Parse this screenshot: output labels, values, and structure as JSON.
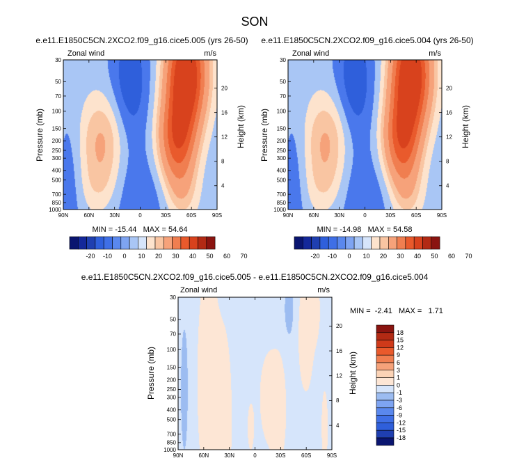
{
  "main_title": "SON",
  "colors": {
    "full_levels": [
      {
        "upto": -20,
        "color": "#0a1570"
      },
      {
        "upto": -15,
        "color": "#1f3fb0"
      },
      {
        "upto": -10,
        "color": "#2f5fdb"
      },
      {
        "upto": -5,
        "color": "#4a78ec"
      },
      {
        "upto": 0,
        "color": "#a9c6f5"
      },
      {
        "upto": 5,
        "color": "#fde3cd"
      },
      {
        "upto": 10,
        "color": "#f9c5a2"
      },
      {
        "upto": 20,
        "color": "#f6a27a"
      },
      {
        "upto": 30,
        "color": "#f07e50"
      },
      {
        "upto": 40,
        "color": "#e95a2c"
      },
      {
        "upto": 999,
        "color": "#d8421d"
      }
    ],
    "diff_levels": [
      {
        "upto": -1,
        "color": "#9cbcf1"
      },
      {
        "upto": 0,
        "color": "#d6e5fb"
      },
      {
        "upto": 1,
        "color": "#fde6d5"
      },
      {
        "upto": 3,
        "color": "#fbd3b6"
      },
      {
        "upto": 99,
        "color": "#f4ae89"
      }
    ]
  },
  "chart_data": [
    {
      "id": "panel1",
      "type": "contour",
      "title": "e.e11.E1850C5CN.2XCO2.f09_g16.cice5.005 (yrs 26-50)",
      "left_label": "Zonal wind",
      "right_label": "m/s",
      "ylabel": "Pressure (mb)",
      "ylabel_right": "Height (km)",
      "x_ticks": [
        "90N",
        "60N",
        "30N",
        "0",
        "30S",
        "60S",
        "90S"
      ],
      "xlim": [
        90,
        -90
      ],
      "y_ticks": [
        30,
        50,
        70,
        100,
        150,
        200,
        250,
        300,
        400,
        500,
        700,
        850,
        1000
      ],
      "ylim": [
        1000,
        30
      ],
      "height_ticks": [
        4,
        8,
        12,
        16,
        20
      ],
      "stats": "MIN = -15.44   MAX = 54.64",
      "min": -15.44,
      "max": 54.64,
      "colorbar_ticks": [
        "-20",
        "-10",
        "0",
        "10",
        "20",
        "30",
        "40",
        "50",
        "60",
        "70"
      ],
      "background_value": -3,
      "blobs": [
        {
          "lat": -55,
          "p": 40,
          "slat": 16,
          "sdec": 0.38,
          "v": 50
        },
        {
          "lat": -40,
          "p": 200,
          "slat": 14,
          "sdec": 0.3,
          "v": 26
        },
        {
          "lat": -50,
          "p": 130,
          "slat": 13,
          "sdec": 0.5,
          "v": 18
        },
        {
          "lat": 45,
          "p": 200,
          "slat": 18,
          "sdec": 0.32,
          "v": 14
        },
        {
          "lat": 48,
          "p": 600,
          "slat": 16,
          "sdec": 0.22,
          "v": 6
        },
        {
          "lat": -48,
          "p": 700,
          "slat": 13,
          "sdec": 0.2,
          "v": 6
        },
        {
          "lat": 12,
          "p": 50,
          "slat": 16,
          "sdec": 0.45,
          "v": -11
        },
        {
          "lat": 0,
          "p": 800,
          "slat": 28,
          "sdec": 0.35,
          "v": -6
        },
        {
          "lat": 82,
          "p": 600,
          "slat": 10,
          "sdec": 0.6,
          "v": -5
        }
      ]
    },
    {
      "id": "panel2",
      "type": "contour",
      "title": "e.e11.E1850C5CN.2XCO2.f09_g16.cice5.004 (yrs 26-50)",
      "left_label": "Zonal wind",
      "right_label": "m/s",
      "ylabel": "Pressure (mb)",
      "ylabel_right": "Height (km)",
      "x_ticks": [
        "90N",
        "60N",
        "30N",
        "0",
        "30S",
        "60S",
        "90S"
      ],
      "xlim": [
        90,
        -90
      ],
      "y_ticks": [
        30,
        50,
        70,
        100,
        150,
        200,
        250,
        300,
        400,
        500,
        700,
        850,
        1000
      ],
      "ylim": [
        1000,
        30
      ],
      "height_ticks": [
        4,
        8,
        12,
        16,
        20
      ],
      "stats": "MIN = -14.98   MAX = 54.58",
      "min": -14.98,
      "max": 54.58,
      "colorbar_ticks": [
        "-20",
        "-10",
        "0",
        "10",
        "20",
        "30",
        "40",
        "50",
        "60",
        "70"
      ],
      "background_value": -3,
      "blobs": [
        {
          "lat": -55,
          "p": 40,
          "slat": 16,
          "sdec": 0.38,
          "v": 50
        },
        {
          "lat": -40,
          "p": 200,
          "slat": 14,
          "sdec": 0.3,
          "v": 26
        },
        {
          "lat": -50,
          "p": 130,
          "slat": 13,
          "sdec": 0.5,
          "v": 18
        },
        {
          "lat": 45,
          "p": 200,
          "slat": 18,
          "sdec": 0.32,
          "v": 14
        },
        {
          "lat": 48,
          "p": 600,
          "slat": 16,
          "sdec": 0.22,
          "v": 6
        },
        {
          "lat": -48,
          "p": 700,
          "slat": 13,
          "sdec": 0.2,
          "v": 6
        },
        {
          "lat": 12,
          "p": 50,
          "slat": 16,
          "sdec": 0.45,
          "v": -11
        },
        {
          "lat": 0,
          "p": 800,
          "slat": 28,
          "sdec": 0.35,
          "v": -6
        },
        {
          "lat": 82,
          "p": 600,
          "slat": 10,
          "sdec": 0.6,
          "v": -5
        }
      ]
    },
    {
      "id": "panel3",
      "type": "contour",
      "title": "e.e11.E1850C5CN.2XCO2.f09_g16.cice5.005 - e.e11.E1850C5CN.2XCO2.f09_g16.cice5.004",
      "left_label": "Zonal wind",
      "right_label": "m/s",
      "ylabel": "Pressure (mb)",
      "ylabel_right": "Height (km)",
      "x_ticks": [
        "90N",
        "60N",
        "30N",
        "0",
        "30S",
        "60S",
        "90S"
      ],
      "xlim": [
        90,
        -90
      ],
      "y_ticks": [
        30,
        50,
        70,
        100,
        150,
        200,
        250,
        300,
        400,
        500,
        700,
        850,
        1000
      ],
      "ylim": [
        1000,
        30
      ],
      "height_ticks": [
        4,
        8,
        12,
        16,
        20
      ],
      "stats": "MIN =  -2.41   MAX =   1.71",
      "min": -2.41,
      "max": 1.71,
      "colorbar_ticks": [
        "18",
        "15",
        "12",
        "9",
        "6",
        "3",
        "1",
        "0",
        "-1",
        "-3",
        "-6",
        "-9",
        "-12",
        "-15",
        "-18"
      ],
      "background_value": -0.4,
      "blobs": [
        {
          "lat": 55,
          "p": 200,
          "slat": 10,
          "sdec": 0.9,
          "v": 0.9
        },
        {
          "lat": 35,
          "p": 500,
          "slat": 7,
          "sdec": 0.7,
          "v": 0.7
        },
        {
          "lat": -15,
          "p": 300,
          "slat": 7,
          "sdec": 0.3,
          "v": 0.9
        },
        {
          "lat": -28,
          "p": 400,
          "slat": 8,
          "sdec": 0.5,
          "v": 0.7
        },
        {
          "lat": -60,
          "p": 70,
          "slat": 7,
          "sdec": 0.45,
          "v": 0.9
        },
        {
          "lat": -70,
          "p": 40,
          "slat": 5,
          "sdec": 0.22,
          "v": 0.8
        },
        {
          "lat": 5,
          "p": 600,
          "slat": 4,
          "sdec": 0.25,
          "v": 0.6
        },
        {
          "lat": 83,
          "p": 250,
          "slat": 3,
          "sdec": 0.45,
          "v": -1.5
        },
        {
          "lat": -40,
          "p": 40,
          "slat": 4,
          "sdec": 0.2,
          "v": -1.4
        },
        {
          "lat": -82,
          "p": 600,
          "slat": 4,
          "sdec": 0.4,
          "v": 0.6
        }
      ]
    }
  ]
}
